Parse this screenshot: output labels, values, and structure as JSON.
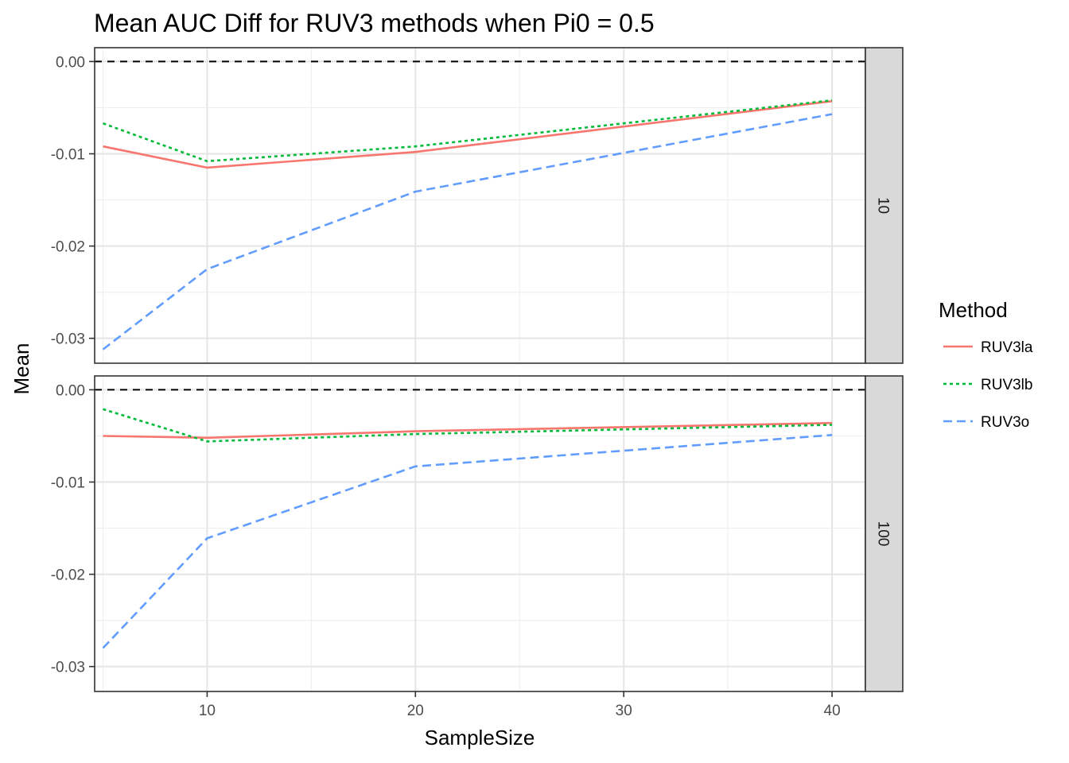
{
  "chart_data": {
    "type": "line",
    "title": "Mean AUC Diff for RUV3 methods when Pi0 = 0.5",
    "xlabel": "SampleSize",
    "ylabel": "Mean",
    "xlim": [
      4.6,
      41.6
    ],
    "ylim": [
      -0.0327,
      0.0015
    ],
    "x_ticks": [
      "10",
      "20",
      "30",
      "40"
    ],
    "y_ticks": [
      "0.00",
      "-0.01",
      "-0.02",
      "-0.03"
    ],
    "x": [
      5,
      10,
      20,
      40
    ],
    "reference_line": 0,
    "grid": true,
    "legend": {
      "title": "Method",
      "position": "right",
      "entries": [
        "RUV3la",
        "RUV3lb",
        "RUV3o"
      ]
    },
    "series_style": [
      {
        "name": "RUV3la",
        "color": "#F8766D",
        "dash": "solid"
      },
      {
        "name": "RUV3lb",
        "color": "#00BA38",
        "dash": "dotted"
      },
      {
        "name": "RUV3o",
        "color": "#619CFF",
        "dash": "dashed"
      }
    ],
    "facets": [
      {
        "strip": "10",
        "series": [
          {
            "name": "RUV3la",
            "values": [
              -0.0092,
              -0.0115,
              -0.0098,
              -0.0043
            ]
          },
          {
            "name": "RUV3lb",
            "values": [
              -0.0067,
              -0.0108,
              -0.0092,
              -0.0042
            ]
          },
          {
            "name": "RUV3o",
            "values": [
              -0.0312,
              -0.0225,
              -0.0141,
              -0.0057
            ]
          }
        ]
      },
      {
        "strip": "100",
        "series": [
          {
            "name": "RUV3la",
            "values": [
              -0.005,
              -0.0052,
              -0.0045,
              -0.0036
            ]
          },
          {
            "name": "RUV3lb",
            "values": [
              -0.0021,
              -0.0056,
              -0.0048,
              -0.0038
            ]
          },
          {
            "name": "RUV3o",
            "values": [
              -0.028,
              -0.0161,
              -0.0083,
              -0.0049
            ]
          }
        ]
      }
    ]
  }
}
